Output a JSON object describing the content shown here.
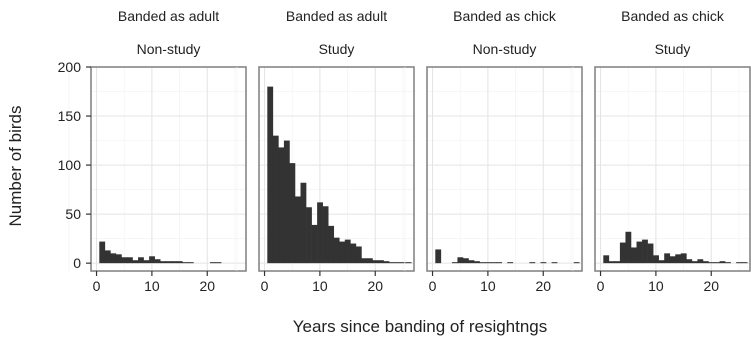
{
  "chart_data": {
    "type": "bar",
    "xlabel": "Years since banding of resightngs",
    "ylabel": "Number of birds",
    "xlim": [
      -1,
      27
    ],
    "ylim": [
      -8,
      200
    ],
    "xticks": [
      0,
      10,
      20
    ],
    "yticks": [
      0,
      50,
      100,
      150,
      200
    ],
    "grid": true,
    "bar_color": "#333333",
    "panels": [
      {
        "strip_top": "Banded as adult",
        "strip_bottom": "Non-study",
        "x": [
          1,
          2,
          3,
          4,
          5,
          6,
          7,
          8,
          9,
          10,
          11,
          12,
          13,
          14,
          15,
          16,
          17,
          18,
          19,
          20,
          21,
          22,
          23,
          24,
          25,
          26
        ],
        "values": [
          22,
          13,
          10,
          9,
          6,
          6,
          3,
          6,
          3,
          7,
          4,
          2,
          2,
          2,
          2,
          1,
          1,
          0,
          0,
          0,
          1,
          1,
          0,
          0,
          0,
          0
        ]
      },
      {
        "strip_top": "Banded as adult",
        "strip_bottom": "Study",
        "x": [
          1,
          2,
          3,
          4,
          5,
          6,
          7,
          8,
          9,
          10,
          11,
          12,
          13,
          14,
          15,
          16,
          17,
          18,
          19,
          20,
          21,
          22,
          23,
          24,
          25,
          26
        ],
        "values": [
          180,
          130,
          118,
          125,
          102,
          68,
          82,
          57,
          39,
          62,
          58,
          38,
          26,
          22,
          24,
          20,
          17,
          5,
          5,
          3,
          3,
          2,
          1,
          1,
          1,
          1
        ]
      },
      {
        "strip_top": "Banded as chick",
        "strip_bottom": "Non-study",
        "x": [
          1,
          2,
          3,
          4,
          5,
          6,
          7,
          8,
          9,
          10,
          11,
          12,
          13,
          14,
          15,
          16,
          17,
          18,
          19,
          20,
          21,
          22,
          23,
          24,
          25,
          26
        ],
        "values": [
          14,
          0,
          0,
          1,
          6,
          5,
          3,
          2,
          1,
          1,
          1,
          1,
          0,
          1,
          0,
          0,
          0,
          1,
          0,
          1,
          0,
          1,
          0,
          0,
          0,
          1
        ]
      },
      {
        "strip_top": "Banded as chick",
        "strip_bottom": "Study",
        "x": [
          1,
          2,
          3,
          4,
          5,
          6,
          7,
          8,
          9,
          10,
          11,
          12,
          13,
          14,
          15,
          16,
          17,
          18,
          19,
          20,
          21,
          22,
          23,
          24,
          25,
          26
        ],
        "values": [
          8,
          2,
          2,
          21,
          32,
          16,
          22,
          24,
          20,
          8,
          3,
          10,
          7,
          9,
          10,
          4,
          2,
          4,
          2,
          1,
          1,
          2,
          1,
          0,
          1,
          1
        ]
      }
    ]
  }
}
